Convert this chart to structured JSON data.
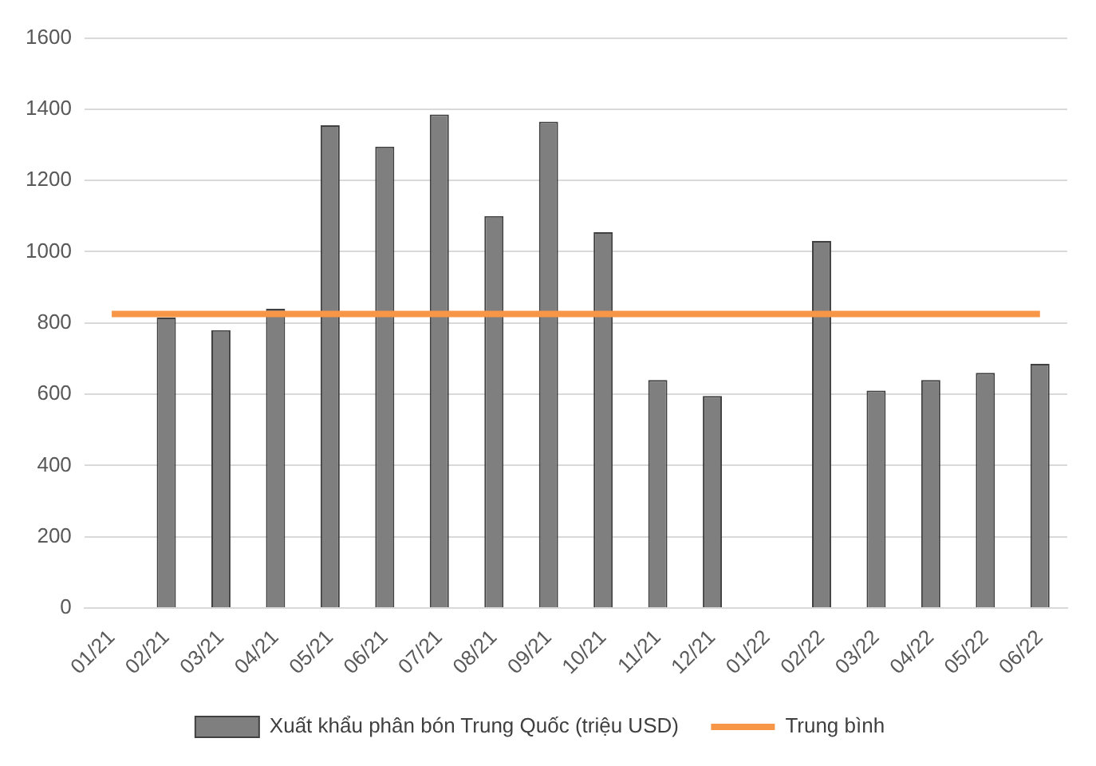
{
  "chart_data": {
    "type": "bar",
    "categories": [
      "01/21",
      "02/21",
      "03/21",
      "04/21",
      "05/21",
      "06/21",
      "07/21",
      "08/21",
      "09/21",
      "10/21",
      "11/21",
      "12/21",
      "01/22",
      "02/22",
      "03/22",
      "04/22",
      "05/22",
      "06/22"
    ],
    "series": [
      {
        "name": "Xuất khẩu phân bón Trung Quốc (triệu USD)",
        "color": "#7f7f7f",
        "values": [
          null,
          815,
          780,
          840,
          1355,
          1295,
          1385,
          1100,
          1365,
          1055,
          640,
          595,
          null,
          1030,
          610,
          640,
          660,
          685
        ]
      },
      {
        "name": "Trung bình",
        "type": "line",
        "color": "#f79646",
        "values": [
          825,
          825,
          825,
          825,
          825,
          825,
          825,
          825,
          825,
          825,
          825,
          825,
          825,
          825,
          825,
          825,
          825,
          825
        ]
      }
    ],
    "ylim": [
      0,
      1600
    ],
    "yticks": [
      0,
      200,
      400,
      600,
      800,
      1000,
      1200,
      1400,
      1600
    ],
    "grid": "y",
    "legend": "bottom",
    "marker": "none",
    "line_style": "solid"
  }
}
